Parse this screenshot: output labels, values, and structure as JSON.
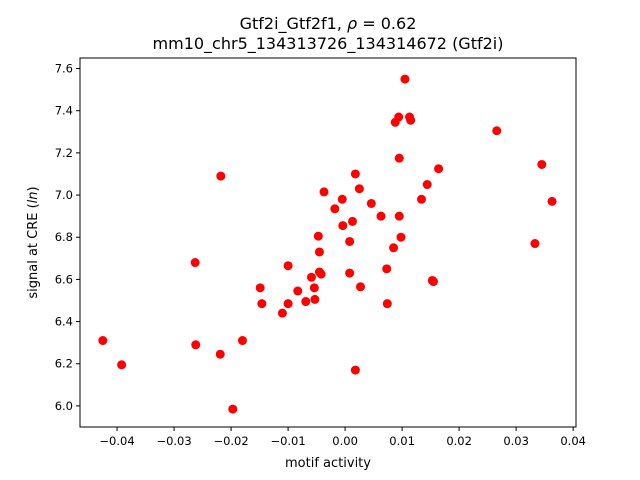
{
  "chart_data": {
    "type": "scatter",
    "title_line1_prefix": "Gtf2i_Gtf2f1, ",
    "title_line1_rho": "ρ",
    "title_line1_suffix": " = 0.62",
    "title_line2": "mm10_chr5_134313726_134314672 (Gtf2i)",
    "xlabel": "motif activity",
    "ylabel_prefix": "signal at CRE (",
    "ylabel_ln": "ln",
    "ylabel_suffix": ")",
    "xlim": [
      -0.0465,
      0.0405
    ],
    "ylim": [
      5.9,
      7.65
    ],
    "xticks": [
      -0.04,
      -0.03,
      -0.02,
      -0.01,
      0.0,
      0.01,
      0.02,
      0.03,
      0.04
    ],
    "xtick_labels": [
      "−0.04",
      "−0.03",
      "−0.02",
      "−0.01",
      "0.00",
      "0.01",
      "0.02",
      "0.03",
      "0.04"
    ],
    "yticks": [
      6.0,
      6.2,
      6.4,
      6.6,
      6.8,
      7.0,
      7.2,
      7.4,
      7.6
    ],
    "ytick_labels": [
      "6.0",
      "6.2",
      "6.4",
      "6.6",
      "6.8",
      "7.0",
      "7.2",
      "7.4",
      "7.6"
    ],
    "grid": false,
    "marker_color": "#ff0000",
    "points": [
      {
        "x": -0.0425,
        "y": 6.31
      },
      {
        "x": -0.0392,
        "y": 6.195
      },
      {
        "x": -0.0263,
        "y": 6.68
      },
      {
        "x": -0.0262,
        "y": 6.29
      },
      {
        "x": -0.0218,
        "y": 7.09
      },
      {
        "x": -0.0219,
        "y": 6.245
      },
      {
        "x": -0.0197,
        "y": 5.985
      },
      {
        "x": -0.018,
        "y": 6.31
      },
      {
        "x": -0.0149,
        "y": 6.56
      },
      {
        "x": -0.0146,
        "y": 6.485
      },
      {
        "x": -0.011,
        "y": 6.44
      },
      {
        "x": -0.01,
        "y": 6.665
      },
      {
        "x": -0.01,
        "y": 6.485
      },
      {
        "x": -0.0083,
        "y": 6.545
      },
      {
        "x": -0.0069,
        "y": 6.495
      },
      {
        "x": -0.0059,
        "y": 6.61
      },
      {
        "x": -0.0054,
        "y": 6.56
      },
      {
        "x": -0.0053,
        "y": 6.505
      },
      {
        "x": -0.0047,
        "y": 6.805
      },
      {
        "x": -0.0045,
        "y": 6.73
      },
      {
        "x": -0.0045,
        "y": 6.635
      },
      {
        "x": -0.0042,
        "y": 6.625
      },
      {
        "x": -0.0037,
        "y": 7.015
      },
      {
        "x": -0.0018,
        "y": 6.935
      },
      {
        "x": -0.0005,
        "y": 6.98
      },
      {
        "x": -0.0004,
        "y": 6.855
      },
      {
        "x": 0.0008,
        "y": 6.78
      },
      {
        "x": 0.0008,
        "y": 6.63
      },
      {
        "x": 0.0013,
        "y": 6.875
      },
      {
        "x": 0.0018,
        "y": 7.1
      },
      {
        "x": 0.0018,
        "y": 6.17
      },
      {
        "x": 0.0025,
        "y": 7.03
      },
      {
        "x": 0.0027,
        "y": 6.565
      },
      {
        "x": 0.0046,
        "y": 6.96
      },
      {
        "x": 0.0063,
        "y": 6.9
      },
      {
        "x": 0.0073,
        "y": 6.65
      },
      {
        "x": 0.0074,
        "y": 6.485
      },
      {
        "x": 0.0085,
        "y": 6.75
      },
      {
        "x": 0.0088,
        "y": 7.345
      },
      {
        "x": 0.0094,
        "y": 7.37
      },
      {
        "x": 0.0095,
        "y": 7.175
      },
      {
        "x": 0.0095,
        "y": 6.9
      },
      {
        "x": 0.0098,
        "y": 6.8
      },
      {
        "x": 0.0105,
        "y": 7.55
      },
      {
        "x": 0.0113,
        "y": 7.37
      },
      {
        "x": 0.0115,
        "y": 7.355
      },
      {
        "x": 0.0134,
        "y": 6.98
      },
      {
        "x": 0.0144,
        "y": 7.05
      },
      {
        "x": 0.0153,
        "y": 6.595
      },
      {
        "x": 0.0155,
        "y": 6.59
      },
      {
        "x": 0.0164,
        "y": 7.125
      },
      {
        "x": 0.0266,
        "y": 7.305
      },
      {
        "x": 0.0333,
        "y": 6.77
      },
      {
        "x": 0.0345,
        "y": 7.145
      },
      {
        "x": 0.0363,
        "y": 6.97
      }
    ]
  }
}
